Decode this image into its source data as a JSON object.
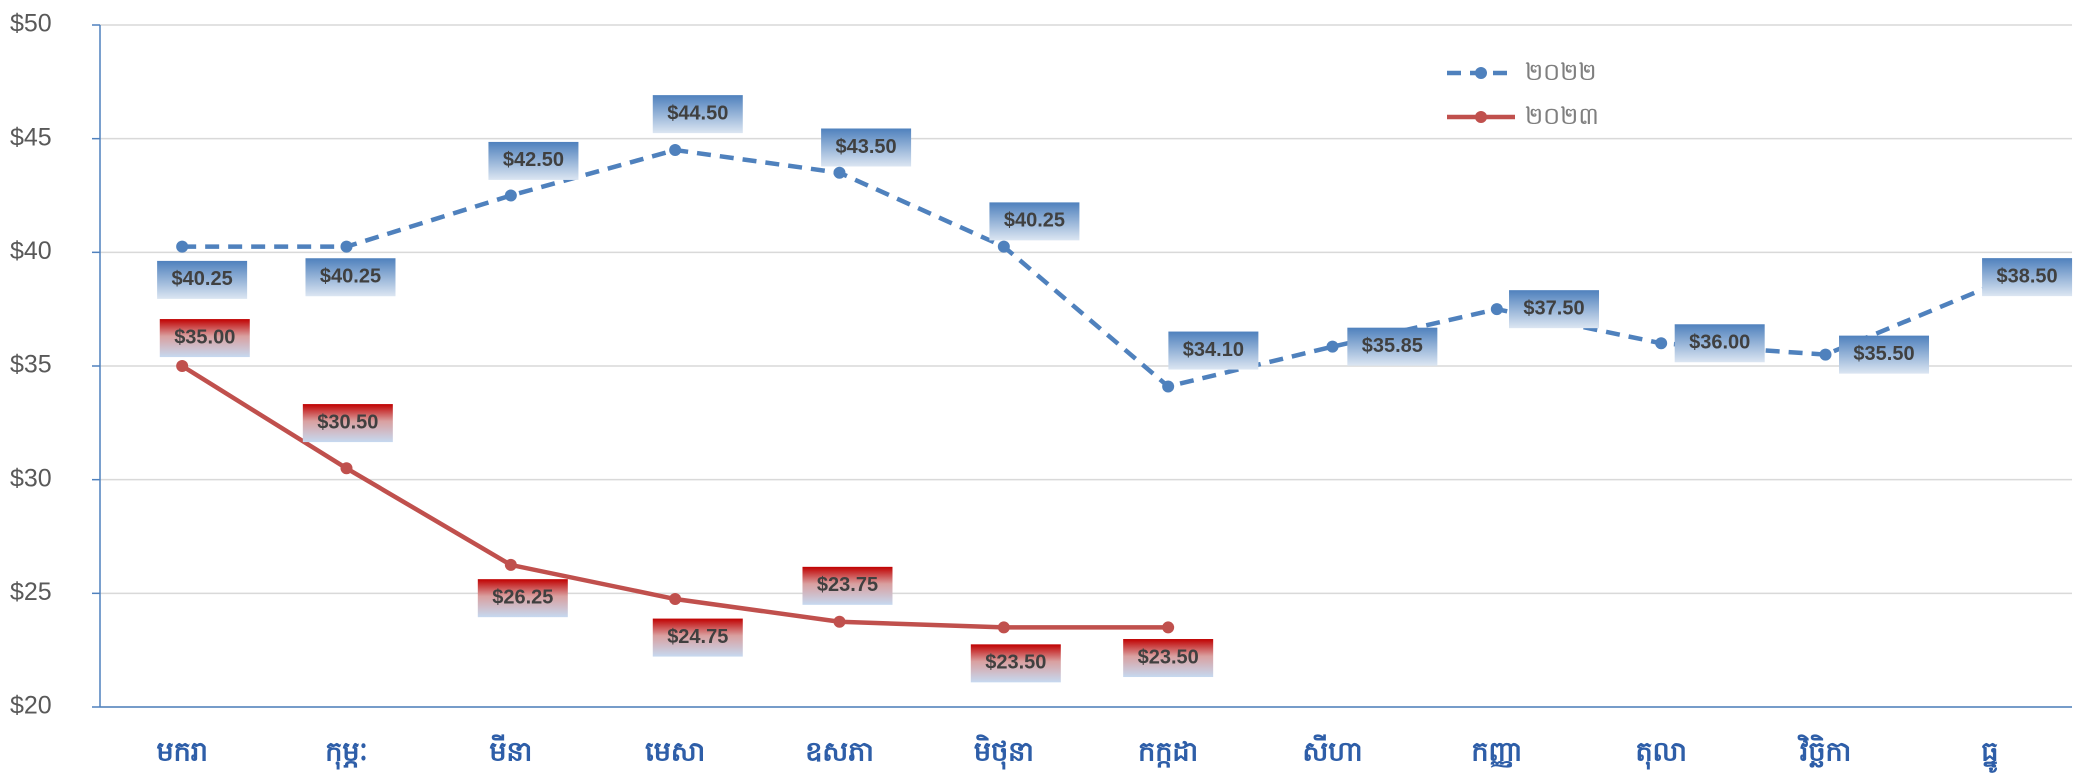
{
  "chart_data": {
    "type": "line",
    "categories": [
      "មករា",
      "កុម្ភៈ",
      "មីនា",
      "មេសា",
      "ឧសភា",
      "មិថុនា",
      "កក្កដា",
      "សីហា",
      "កញ្ញា",
      "តុលា",
      "វិច្ឆិកា",
      "ធ្នូ"
    ],
    "series": [
      {
        "name": "២០២២",
        "color": "#4f81bd",
        "dashed": true,
        "values": [
          40.25,
          40.25,
          42.5,
          44.5,
          43.5,
          40.25,
          34.1,
          35.85,
          37.5,
          36,
          35.5,
          38.5
        ],
        "value_labels": [
          "$40.25",
          "$40.25",
          "$42.50",
          "$44.50",
          "$43.50",
          "$40.25",
          "$34.10",
          "$35.85",
          "$37.50",
          "$36.00",
          "$35.50",
          "$38.50"
        ]
      },
      {
        "name": "២០២៣",
        "color": "#c0504d",
        "dashed": false,
        "values": [
          35,
          30.5,
          26.25,
          24.75,
          23.75,
          23.5,
          23.5,
          null,
          null,
          null,
          null,
          null
        ],
        "value_labels": [
          "$35.00",
          "$30.50",
          "$26.25",
          "$24.75",
          "$23.75",
          "$23.50",
          "$23.50",
          null,
          null,
          null,
          null,
          null
        ]
      }
    ],
    "ylim": [
      20,
      50
    ],
    "yticks": [
      {
        "value": 20,
        "label": "$20"
      },
      {
        "value": 25,
        "label": "$25"
      },
      {
        "value": 30,
        "label": "$30"
      },
      {
        "value": 35,
        "label": "$35"
      },
      {
        "value": 40,
        "label": "$40"
      },
      {
        "value": 45,
        "label": "$45"
      },
      {
        "value": 50,
        "label": "$50"
      }
    ],
    "grid": true,
    "legend": "top-right"
  }
}
